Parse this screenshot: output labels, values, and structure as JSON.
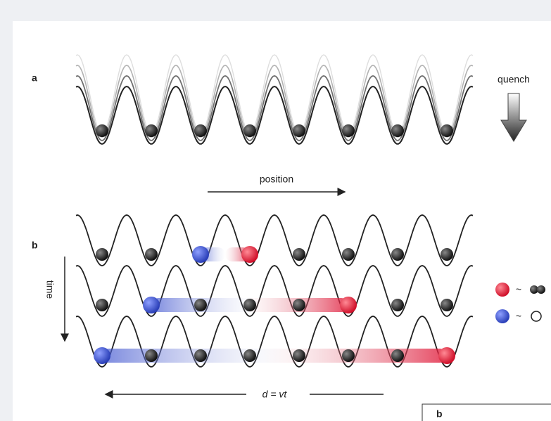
{
  "panel_a": {
    "label": "a",
    "annotation": "quench",
    "axis_label": "position"
  },
  "panel_b": {
    "label": "b",
    "axis_label": "time",
    "legend": [
      {
        "symbol": "~"
      },
      {
        "symbol": "~"
      }
    ],
    "distance_label": "d = vt",
    "inset_label": "b"
  }
}
